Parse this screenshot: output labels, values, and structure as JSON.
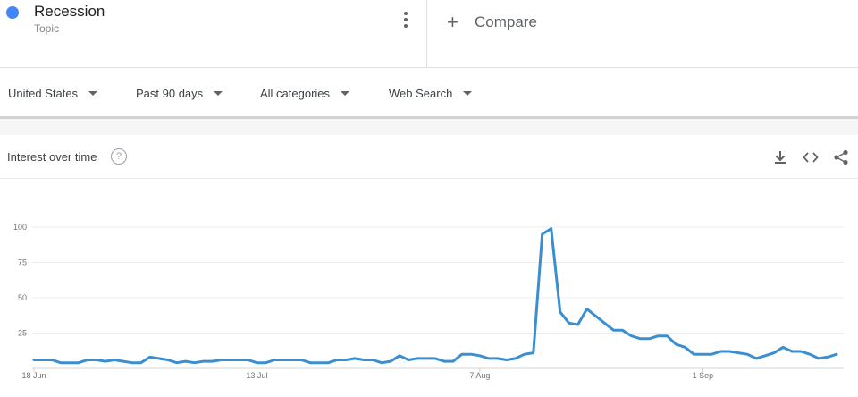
{
  "term": {
    "title": "Recession",
    "subtitle": "Topic",
    "color": "#4285f4"
  },
  "compare": {
    "plus": "+",
    "label": "Compare"
  },
  "filters": [
    {
      "label": "United States"
    },
    {
      "label": "Past 90 days"
    },
    {
      "label": "All categories"
    },
    {
      "label": "Web Search"
    }
  ],
  "card": {
    "title": "Interest over time",
    "help_glyph": "?",
    "tools": [
      "download-icon",
      "embed-icon",
      "share-icon"
    ]
  },
  "chart_data": {
    "type": "line",
    "title": "Interest over time",
    "xlabel": "",
    "ylabel": "",
    "ylim": [
      0,
      100
    ],
    "yticks": [
      25,
      50,
      75,
      100
    ],
    "x_tick_labels": [
      {
        "label": "18 Jun",
        "index": 0
      },
      {
        "label": "13 Jul",
        "index": 25
      },
      {
        "label": "7 Aug",
        "index": 50
      },
      {
        "label": "1 Sep",
        "index": 75
      }
    ],
    "grid": true,
    "series": [
      {
        "color": "#3b8fd0",
        "values": [
          6,
          6,
          6,
          4,
          4,
          4,
          6,
          6,
          5,
          6,
          5,
          4,
          4,
          8,
          7,
          6,
          4,
          5,
          4,
          5,
          5,
          6,
          6,
          6,
          6,
          4,
          4,
          6,
          6,
          6,
          6,
          4,
          4,
          4,
          6,
          6,
          7,
          6,
          6,
          4,
          5,
          9,
          6,
          7,
          7,
          7,
          5,
          5,
          10,
          10,
          9,
          7,
          7,
          6,
          7,
          10,
          11,
          95,
          99,
          40,
          32,
          31,
          42,
          37,
          32,
          27,
          27,
          23,
          21,
          21,
          23,
          23,
          17,
          15,
          10,
          10,
          10,
          12,
          12,
          11,
          10,
          7,
          9,
          11,
          15,
          12,
          12,
          10,
          7,
          8,
          10
        ]
      }
    ]
  }
}
